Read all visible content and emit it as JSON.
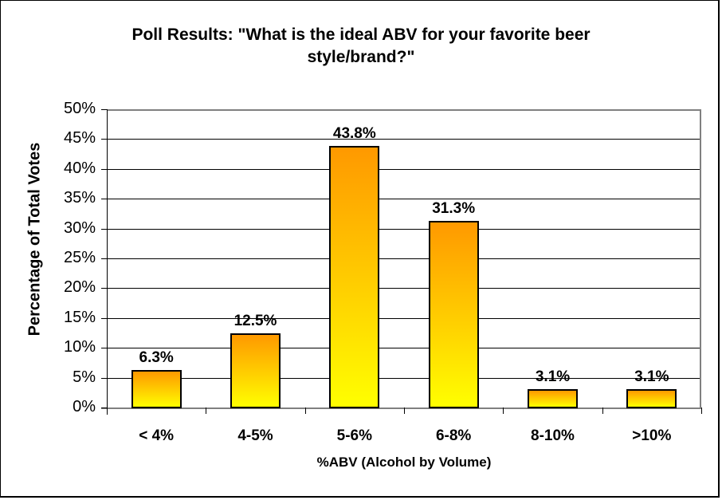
{
  "chart_data": {
    "type": "bar",
    "title": "Poll Results: \"What is the ideal ABV for your favorite beer style/brand?\"",
    "title_lines": [
      "Poll Results: \"What is the ideal ABV for your favorite beer",
      "style/brand?\""
    ],
    "xlabel": "%ABV (Alcohol by Volume)",
    "ylabel": "Percentage of Total Votes",
    "categories": [
      "< 4%",
      "4-5%",
      "5-6%",
      "6-8%",
      "8-10%",
      ">10%"
    ],
    "values": [
      6.3,
      12.5,
      43.8,
      31.3,
      3.1,
      3.1
    ],
    "value_labels": [
      "6.3%",
      "12.5%",
      "43.8%",
      "31.3%",
      "3.1%",
      "3.1%"
    ],
    "ylim": [
      0,
      50
    ],
    "yticks": [
      "0%",
      "5%",
      "10%",
      "15%",
      "20%",
      "25%",
      "30%",
      "35%",
      "40%",
      "45%",
      "50%"
    ],
    "grid": true,
    "legend": null,
    "bar_gradient": [
      "#ff9900",
      "#ffff00"
    ]
  }
}
